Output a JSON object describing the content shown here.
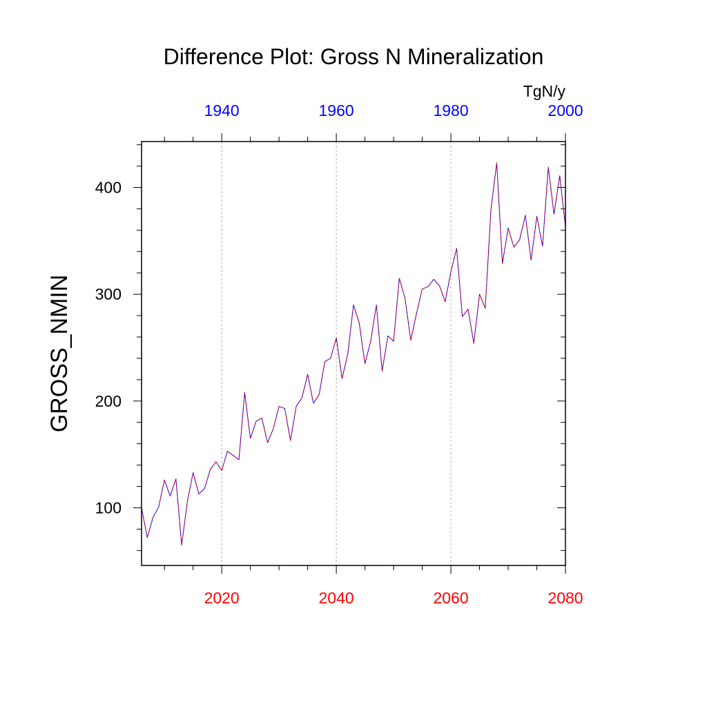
{
  "chart_data": {
    "type": "line",
    "title": "Difference Plot: Gross N Mineralization",
    "units": "TgN/y",
    "ylabel": "GROSS_NMIN",
    "xlabel": "",
    "xlim": [
      2006,
      2080
    ],
    "ylim": [
      46,
      443
    ],
    "grid": "vertical dotted lines at 2020, 2040, 2060",
    "y_ticks": [
      100,
      200,
      300,
      400
    ],
    "y_tick_labels": [
      "100",
      "200",
      "300",
      "400"
    ],
    "bottom_axis": {
      "color": "#ff0000",
      "ticks": [
        2020,
        2040,
        2060,
        2080
      ],
      "tick_labels": [
        "2020",
        "2040",
        "2060",
        "2080"
      ]
    },
    "top_axis": {
      "color": "#0000ff",
      "offset_years": 80,
      "ticks": [
        1940,
        1960,
        1980,
        2000
      ],
      "tick_labels": [
        "1940",
        "1960",
        "1980",
        "2000"
      ]
    },
    "x": [
      2006,
      2007,
      2008,
      2009,
      2010,
      2011,
      2012,
      2013,
      2014,
      2015,
      2016,
      2017,
      2018,
      2019,
      2020,
      2021,
      2022,
      2023,
      2024,
      2025,
      2026,
      2027,
      2028,
      2029,
      2030,
      2031,
      2032,
      2033,
      2034,
      2035,
      2036,
      2037,
      2038,
      2039,
      2040,
      2041,
      2042,
      2043,
      2044,
      2045,
      2046,
      2047,
      2048,
      2049,
      2050,
      2051,
      2052,
      2053,
      2054,
      2055,
      2056,
      2057,
      2058,
      2059,
      2060,
      2061,
      2062,
      2063,
      2064,
      2065,
      2066,
      2067,
      2068,
      2069,
      2070,
      2071,
      2072,
      2073,
      2074,
      2075,
      2076,
      2077,
      2078,
      2079,
      2080
    ],
    "series": [
      {
        "color": "#0000ff",
        "values": [
          100,
          72,
          91,
          101,
          126,
          111,
          127,
          65,
          106,
          133,
          113,
          118,
          136,
          143,
          135,
          153,
          149,
          145,
          208,
          165,
          181,
          184,
          161,
          174,
          195,
          193,
          163,
          195,
          203,
          225,
          198,
          206,
          237,
          240,
          259,
          221,
          244,
          290,
          273,
          235,
          256,
          290,
          228,
          261,
          256,
          315,
          296,
          257,
          282,
          305,
          307,
          314,
          308,
          293,
          321,
          343,
          279,
          286,
          254,
          300,
          287,
          380,
          423,
          329,
          362,
          344,
          351,
          374,
          332,
          373,
          345,
          419,
          375,
          411,
          363
        ]
      },
      {
        "color": "#ff0000",
        "dash": "dashed",
        "values": [
          100,
          72,
          91,
          101,
          126,
          111,
          127,
          65,
          106,
          133,
          113,
          118,
          136,
          143,
          135,
          153,
          149,
          145,
          208,
          165,
          181,
          184,
          161,
          174,
          195,
          193,
          163,
          195,
          203,
          225,
          198,
          206,
          237,
          240,
          259,
          221,
          244,
          290,
          273,
          235,
          256,
          290,
          228,
          261,
          256,
          315,
          296,
          257,
          282,
          305,
          307,
          314,
          308,
          293,
          321,
          343,
          279,
          286,
          254,
          300,
          287,
          380,
          423,
          329,
          362,
          344,
          351,
          374,
          332,
          373,
          345,
          419,
          375,
          411,
          363
        ]
      }
    ]
  }
}
